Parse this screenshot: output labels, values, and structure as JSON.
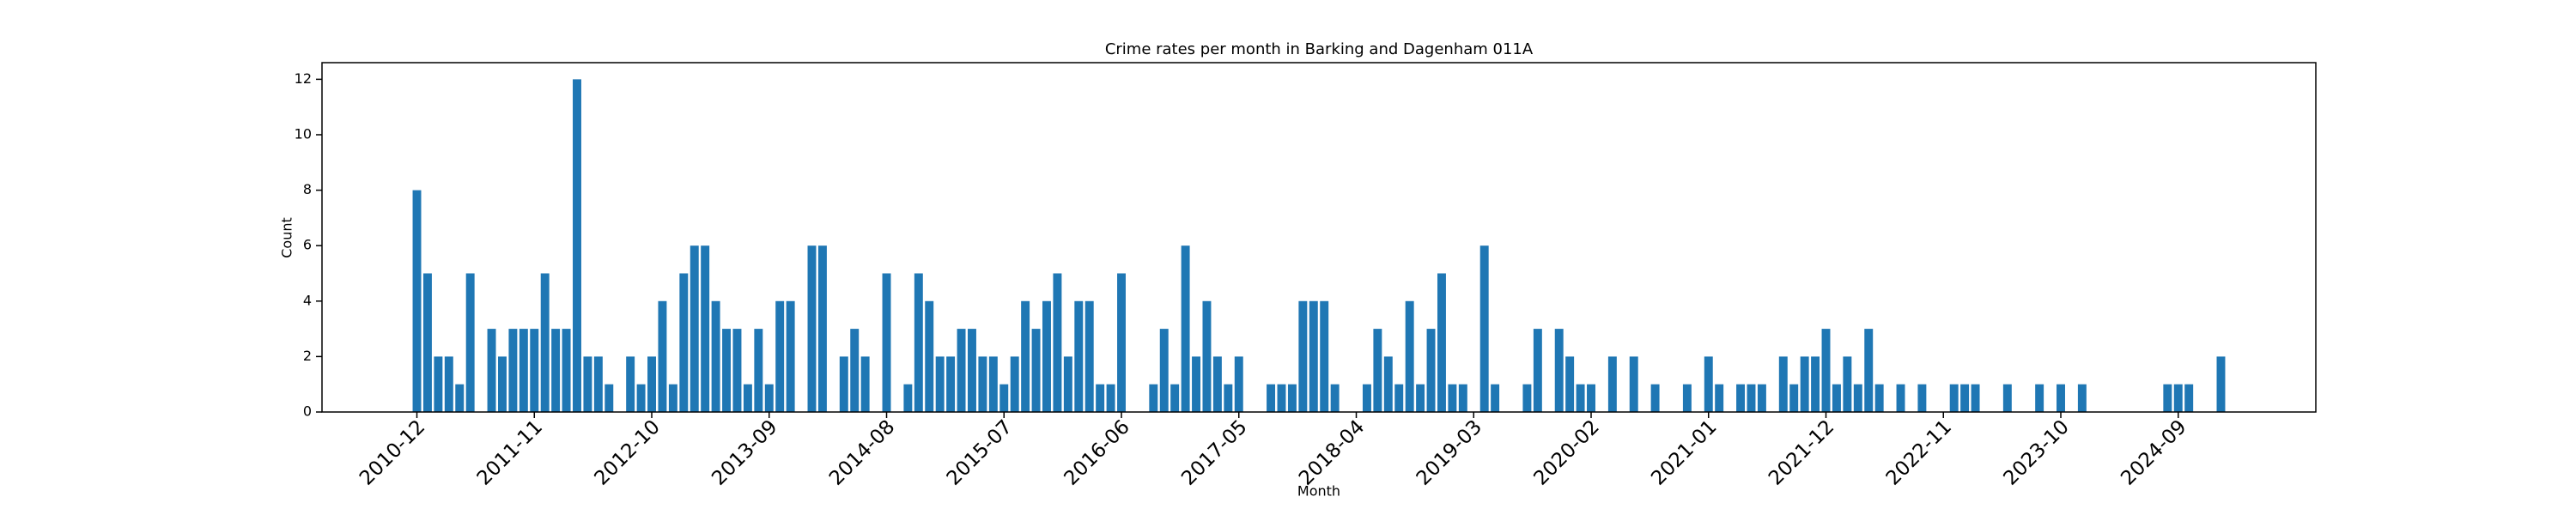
{
  "chart_data": {
    "type": "bar",
    "title": "Crime rates per month in Barking and Dagenham 011A",
    "xlabel": "Month",
    "ylabel": "Count",
    "color": "#1f77b4",
    "categories": [
      "2010-12",
      null,
      null,
      null,
      null,
      null,
      null,
      null,
      null,
      null,
      null,
      "2011-11",
      null,
      null,
      null,
      null,
      null,
      null,
      null,
      null,
      null,
      null,
      "2012-10",
      null,
      null,
      null,
      null,
      null,
      null,
      null,
      null,
      null,
      null,
      "2013-09",
      null,
      null,
      null,
      null,
      null,
      null,
      null,
      null,
      null,
      null,
      "2014-08",
      null,
      null,
      null,
      null,
      null,
      null,
      null,
      null,
      null,
      null,
      "2015-07",
      null,
      null,
      null,
      null,
      null,
      null,
      null,
      null,
      null,
      null,
      "2016-06",
      null,
      null,
      null,
      null,
      null,
      null,
      null,
      null,
      null,
      null,
      "2017-05",
      null,
      null,
      null,
      null,
      null,
      null,
      null,
      null,
      null,
      null,
      "2018-04",
      null,
      null,
      null,
      null,
      null,
      null,
      null,
      null,
      null,
      null,
      "2019-03",
      null,
      null,
      null,
      null,
      null,
      null,
      null,
      null,
      null,
      null,
      "2020-02",
      null,
      null,
      null,
      null,
      null,
      null,
      null,
      null,
      null,
      null,
      "2021-01",
      null,
      null,
      null,
      null,
      null,
      null,
      null,
      null,
      null,
      null,
      "2021-12",
      null,
      null,
      null,
      null,
      null,
      null,
      null,
      null,
      null,
      null,
      "2022-11",
      null,
      null,
      null,
      null,
      null,
      null,
      null,
      null,
      null,
      null,
      "2023-10",
      null,
      null,
      null,
      null,
      null,
      null,
      null,
      null,
      null,
      null,
      "2024-09",
      null,
      null,
      null,
      null
    ],
    "values": [
      8,
      5,
      2,
      2,
      1,
      5,
      0,
      3,
      2,
      3,
      3,
      3,
      5,
      3,
      3,
      12,
      2,
      2,
      1,
      0,
      2,
      1,
      2,
      4,
      1,
      5,
      6,
      6,
      4,
      3,
      3,
      1,
      3,
      1,
      4,
      4,
      0,
      6,
      6,
      0,
      2,
      3,
      2,
      0,
      5,
      0,
      1,
      5,
      4,
      2,
      2,
      3,
      3,
      2,
      2,
      1,
      2,
      4,
      3,
      4,
      5,
      2,
      4,
      4,
      1,
      1,
      5,
      0,
      0,
      1,
      3,
      1,
      6,
      2,
      4,
      2,
      1,
      2,
      0,
      0,
      1,
      1,
      1,
      4,
      4,
      4,
      1,
      0,
      0,
      1,
      3,
      2,
      1,
      4,
      1,
      3,
      5,
      1,
      1,
      0,
      6,
      1,
      0,
      0,
      1,
      3,
      0,
      3,
      2,
      1,
      1,
      0,
      2,
      0,
      2,
      0,
      1,
      0,
      0,
      1,
      0,
      2,
      1,
      0,
      1,
      1,
      1,
      0,
      2,
      1,
      2,
      2,
      3,
      1,
      2,
      1,
      3,
      1,
      0,
      1,
      0,
      1,
      0,
      0,
      1,
      1,
      1,
      0,
      0,
      1,
      0,
      0,
      1,
      0,
      1,
      0,
      1,
      0,
      0,
      0,
      0,
      0,
      0,
      0,
      1,
      1,
      1,
      0,
      0,
      2
    ],
    "ylim": [
      0,
      12.6
    ],
    "yticks": [
      0,
      2,
      4,
      6,
      8,
      10,
      12
    ]
  }
}
